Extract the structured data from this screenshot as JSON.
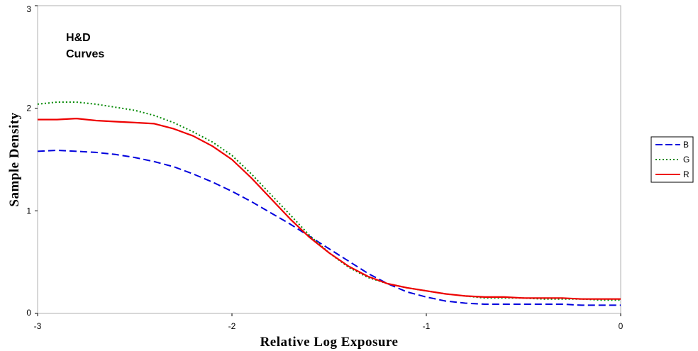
{
  "chart_data": {
    "type": "line",
    "title_lines": [
      "H&D",
      "Curves"
    ],
    "xlabel": "Relative Log Exposure",
    "ylabel": "Sample Density",
    "xlim": [
      -3,
      0
    ],
    "ylim": [
      0,
      3
    ],
    "x_ticks": [
      -3,
      -2,
      -1,
      0
    ],
    "x_tick_labels": [
      "-3",
      "-2",
      "-1",
      "0"
    ],
    "y_ticks": [
      0,
      1,
      2,
      3
    ],
    "y_tick_labels": [
      "0",
      "1",
      "2",
      "3"
    ],
    "grid": false,
    "legend_position": "right",
    "series": [
      {
        "name": "B",
        "color": "#0000dd",
        "style": "dashed",
        "points": [
          [
            -3.0,
            1.58
          ],
          [
            -2.9,
            1.59
          ],
          [
            -2.8,
            1.58
          ],
          [
            -2.7,
            1.57
          ],
          [
            -2.6,
            1.55
          ],
          [
            -2.5,
            1.52
          ],
          [
            -2.4,
            1.48
          ],
          [
            -2.3,
            1.43
          ],
          [
            -2.2,
            1.36
          ],
          [
            -2.1,
            1.28
          ],
          [
            -2.0,
            1.19
          ],
          [
            -1.9,
            1.09
          ],
          [
            -1.8,
            0.98
          ],
          [
            -1.7,
            0.87
          ],
          [
            -1.6,
            0.75
          ],
          [
            -1.5,
            0.63
          ],
          [
            -1.4,
            0.51
          ],
          [
            -1.3,
            0.39
          ],
          [
            -1.2,
            0.29
          ],
          [
            -1.1,
            0.21
          ],
          [
            -1.0,
            0.16
          ],
          [
            -0.9,
            0.12
          ],
          [
            -0.8,
            0.1
          ],
          [
            -0.7,
            0.09
          ],
          [
            -0.6,
            0.09
          ],
          [
            -0.5,
            0.09
          ],
          [
            -0.4,
            0.09
          ],
          [
            -0.3,
            0.09
          ],
          [
            -0.2,
            0.08
          ],
          [
            -0.1,
            0.08
          ],
          [
            0.0,
            0.08
          ]
        ]
      },
      {
        "name": "G",
        "color": "#008800",
        "style": "dotted",
        "points": [
          [
            -3.0,
            2.04
          ],
          [
            -2.9,
            2.06
          ],
          [
            -2.8,
            2.06
          ],
          [
            -2.7,
            2.04
          ],
          [
            -2.6,
            2.01
          ],
          [
            -2.5,
            1.98
          ],
          [
            -2.4,
            1.93
          ],
          [
            -2.3,
            1.86
          ],
          [
            -2.2,
            1.77
          ],
          [
            -2.1,
            1.67
          ],
          [
            -2.0,
            1.54
          ],
          [
            -1.9,
            1.36
          ],
          [
            -1.8,
            1.16
          ],
          [
            -1.7,
            0.96
          ],
          [
            -1.6,
            0.76
          ],
          [
            -1.5,
            0.59
          ],
          [
            -1.4,
            0.45
          ],
          [
            -1.3,
            0.35
          ],
          [
            -1.2,
            0.29
          ],
          [
            -1.1,
            0.25
          ],
          [
            -1.0,
            0.22
          ],
          [
            -0.9,
            0.19
          ],
          [
            -0.8,
            0.17
          ],
          [
            -0.7,
            0.15
          ],
          [
            -0.6,
            0.15
          ],
          [
            -0.5,
            0.15
          ],
          [
            -0.4,
            0.14
          ],
          [
            -0.3,
            0.14
          ],
          [
            -0.2,
            0.14
          ],
          [
            -0.1,
            0.13
          ],
          [
            0.0,
            0.13
          ]
        ]
      },
      {
        "name": "R",
        "color": "#ee0000",
        "style": "solid",
        "points": [
          [
            -3.0,
            1.89
          ],
          [
            -2.9,
            1.89
          ],
          [
            -2.8,
            1.9
          ],
          [
            -2.7,
            1.88
          ],
          [
            -2.6,
            1.87
          ],
          [
            -2.5,
            1.86
          ],
          [
            -2.4,
            1.85
          ],
          [
            -2.3,
            1.8
          ],
          [
            -2.2,
            1.73
          ],
          [
            -2.1,
            1.63
          ],
          [
            -2.0,
            1.5
          ],
          [
            -1.9,
            1.32
          ],
          [
            -1.8,
            1.12
          ],
          [
            -1.7,
            0.92
          ],
          [
            -1.6,
            0.74
          ],
          [
            -1.5,
            0.59
          ],
          [
            -1.4,
            0.46
          ],
          [
            -1.3,
            0.36
          ],
          [
            -1.2,
            0.29
          ],
          [
            -1.1,
            0.25
          ],
          [
            -1.0,
            0.22
          ],
          [
            -0.9,
            0.19
          ],
          [
            -0.8,
            0.17
          ],
          [
            -0.7,
            0.16
          ],
          [
            -0.6,
            0.16
          ],
          [
            -0.5,
            0.15
          ],
          [
            -0.4,
            0.15
          ],
          [
            -0.3,
            0.15
          ],
          [
            -0.2,
            0.14
          ],
          [
            -0.1,
            0.14
          ],
          [
            0.0,
            0.14
          ]
        ]
      }
    ]
  }
}
